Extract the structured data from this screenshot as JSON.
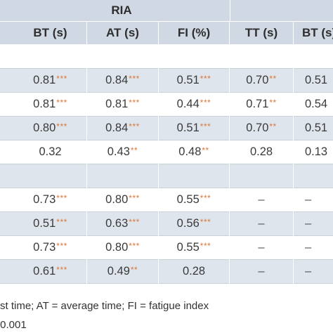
{
  "table": {
    "group_header": "RIA",
    "columns": [
      "BT (s)",
      "AT (s)",
      "FI (%)",
      "TT (s)",
      "BT (s)"
    ],
    "rows": [
      {
        "cells": [
          {
            "v": ""
          },
          {
            "v": ""
          },
          {
            "v": ""
          },
          {
            "v": ""
          },
          {
            "v": ""
          }
        ]
      },
      {
        "cells": [
          {
            "v": "0.81",
            "s": "***"
          },
          {
            "v": "0.84",
            "s": "***"
          },
          {
            "v": "0.51",
            "s": "***"
          },
          {
            "v": "0.70",
            "s": "**"
          },
          {
            "v": "0.51",
            "s": ""
          }
        ]
      },
      {
        "cells": [
          {
            "v": "0.81",
            "s": "***"
          },
          {
            "v": "0.81",
            "s": "***"
          },
          {
            "v": "0.44",
            "s": "***"
          },
          {
            "v": "0.71",
            "s": "**"
          },
          {
            "v": "0.54",
            "s": ""
          }
        ]
      },
      {
        "cells": [
          {
            "v": "0.80",
            "s": "***"
          },
          {
            "v": "0.84",
            "s": "***"
          },
          {
            "v": "0.51",
            "s": "***"
          },
          {
            "v": "0.70",
            "s": "**"
          },
          {
            "v": "0.51",
            "s": ""
          }
        ]
      },
      {
        "cells": [
          {
            "v": "0.32",
            "s": ""
          },
          {
            "v": "0.43",
            "s": "**"
          },
          {
            "v": "0.48",
            "s": "**"
          },
          {
            "v": "0.28",
            "s": ""
          },
          {
            "v": "0.13",
            "s": ""
          }
        ]
      },
      {
        "cells": [
          {
            "v": ""
          },
          {
            "v": ""
          },
          {
            "v": ""
          },
          {
            "v": ""
          },
          {
            "v": ""
          }
        ]
      },
      {
        "cells": [
          {
            "v": "0.73",
            "s": "***"
          },
          {
            "v": "0.80",
            "s": "***"
          },
          {
            "v": "0.55",
            "s": "***"
          },
          {
            "v": "–"
          },
          {
            "v": "–"
          }
        ]
      },
      {
        "cells": [
          {
            "v": "0.51",
            "s": "***"
          },
          {
            "v": "0.63",
            "s": "***"
          },
          {
            "v": "0.56",
            "s": "***"
          },
          {
            "v": "–"
          },
          {
            "v": "–"
          }
        ]
      },
      {
        "cells": [
          {
            "v": "0.73",
            "s": "***"
          },
          {
            "v": "0.80",
            "s": "***"
          },
          {
            "v": "0.55",
            "s": "***"
          },
          {
            "v": "–"
          },
          {
            "v": "–"
          }
        ]
      },
      {
        "cells": [
          {
            "v": "0.61",
            "s": "***"
          },
          {
            "v": "0.49",
            "s": "**"
          },
          {
            "v": "0.28",
            "s": ""
          },
          {
            "v": "–"
          },
          {
            "v": "–"
          }
        ]
      }
    ]
  },
  "footnotes": [
    "st time; AT = average time; FI = fatigue index",
    ".0.001"
  ],
  "colors": {
    "header_band": "#cfd8e3",
    "row_shaded": "#dfe5ed",
    "row_plain": "#ffffff",
    "significance": "#d9773a"
  }
}
